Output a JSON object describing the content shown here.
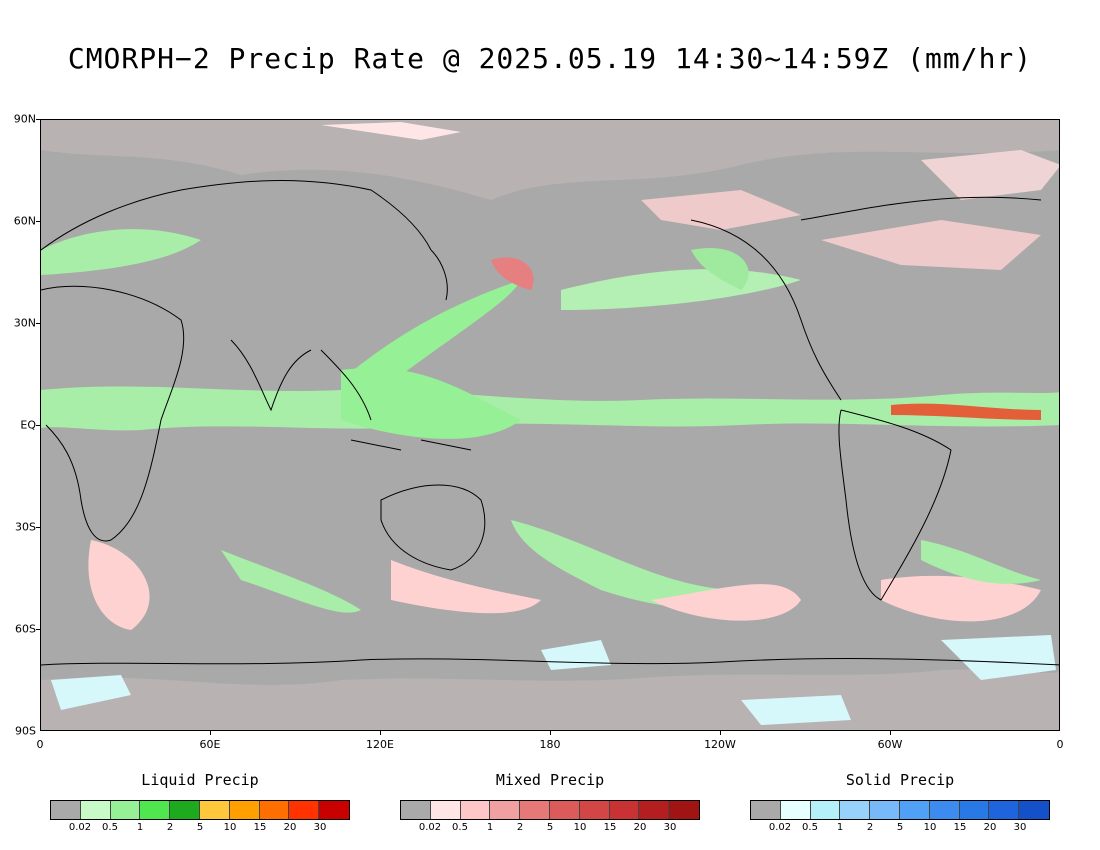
{
  "title": "CMORPH−2 Precip Rate @ 2025.05.19 14:30~14:59Z (mm/hr)",
  "lat_labels": [
    "90N",
    "60N",
    "30N",
    "EQ",
    "30S",
    "60S",
    "90S"
  ],
  "lon_labels": [
    "0",
    "60E",
    "120E",
    "180",
    "120W",
    "60W",
    "0"
  ],
  "colors": {
    "background_no_precip": "#a9a9a9",
    "coastline": "#000000"
  },
  "legends": [
    {
      "title": "Liquid Precip",
      "colors": [
        "#a9a9a9",
        "#c8fac8",
        "#96f096",
        "#50e650",
        "#1eaa1e",
        "#ffc83c",
        "#ffa000",
        "#ff6e00",
        "#ff3200",
        "#c80000"
      ],
      "ticks": [
        "0.02",
        "0.5",
        "1",
        "2",
        "5",
        "10",
        "15",
        "20",
        "30"
      ]
    },
    {
      "title": "Mixed Precip",
      "colors": [
        "#a9a9a9",
        "#ffe6e6",
        "#ffc8c8",
        "#f0a0a0",
        "#e67878",
        "#dc5a5a",
        "#d24646",
        "#c83232",
        "#b41e1e",
        "#a01414"
      ],
      "ticks": [
        "0.02",
        "0.5",
        "1",
        "2",
        "5",
        "10",
        "15",
        "20",
        "30"
      ]
    },
    {
      "title": "Solid Precip",
      "colors": [
        "#a9a9a9",
        "#e6ffff",
        "#b4f0fa",
        "#96d2fa",
        "#78b9fa",
        "#50a0f5",
        "#3c8cf0",
        "#2878e6",
        "#1e64dc",
        "#1450c8"
      ],
      "ticks": [
        "0.02",
        "0.5",
        "1",
        "2",
        "5",
        "10",
        "15",
        "20",
        "30"
      ]
    }
  ]
}
